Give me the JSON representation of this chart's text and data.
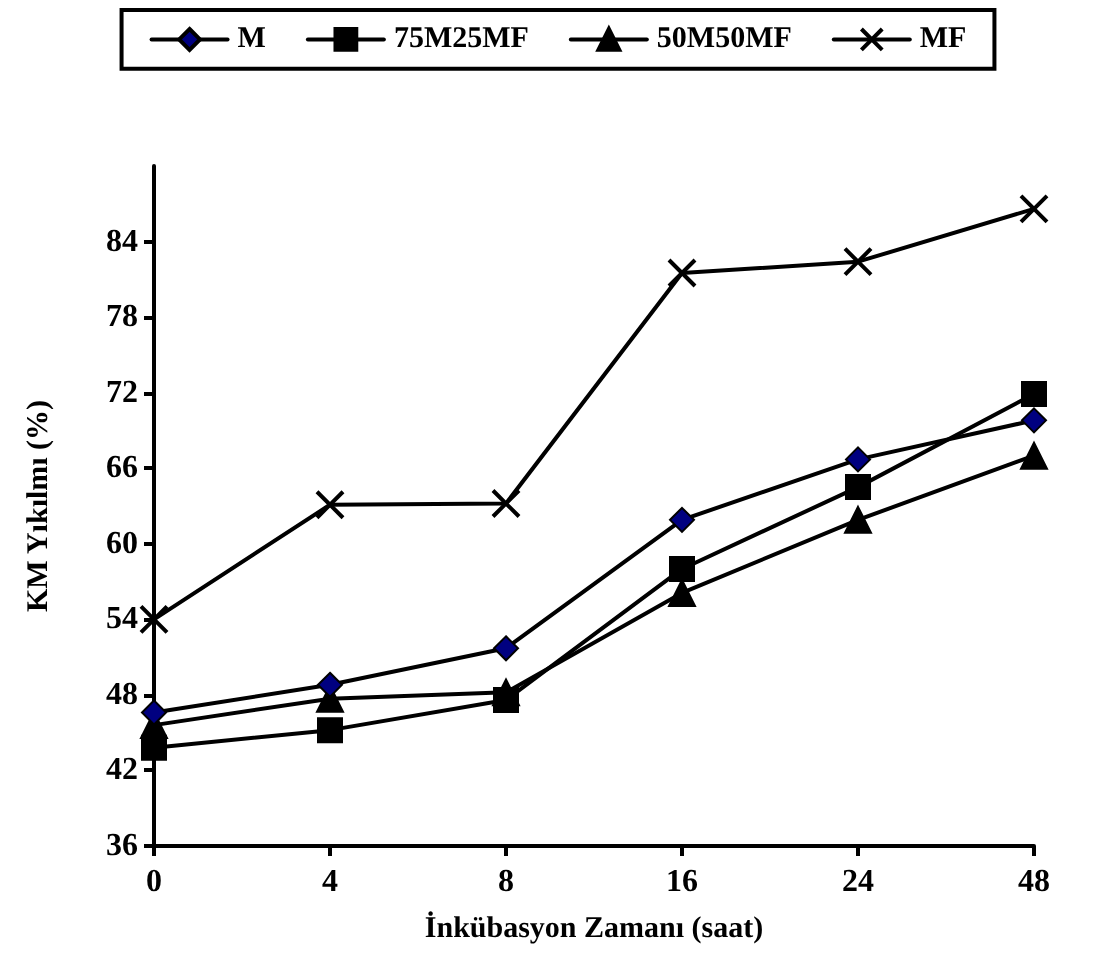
{
  "chart_data": {
    "type": "line",
    "xlabel": "İnkübasyon Zamanı (saat)",
    "ylabel": "KM Yıkılmı (%)",
    "categories": [
      "0",
      "4",
      "8",
      "16",
      "24",
      "48"
    ],
    "series": [
      {
        "name": "M",
        "color": "#000080",
        "marker": "diamond",
        "values": [
          46.6,
          48.8,
          51.7,
          61.9,
          66.7,
          69.8
        ]
      },
      {
        "name": "75M25MF",
        "color": "#000000",
        "marker": "square",
        "values": [
          43.8,
          45.2,
          47.6,
          58,
          64.5,
          71.9
        ]
      },
      {
        "name": "50M50MF",
        "color": "#000000",
        "marker": "triangle",
        "values": [
          45.6,
          47.7,
          48.2,
          56.1,
          61.9,
          67
        ]
      },
      {
        "name": "MF",
        "color": "#000000",
        "marker": "cross",
        "values": [
          54,
          63.1,
          63.2,
          81.5,
          82.4,
          86.6
        ]
      }
    ],
    "ylim": [
      36,
      90
    ],
    "yticks": [
      36,
      42,
      48,
      54,
      60,
      66,
      72,
      78,
      84
    ],
    "grid": false,
    "legend": "top",
    "line_style": "solid"
  }
}
